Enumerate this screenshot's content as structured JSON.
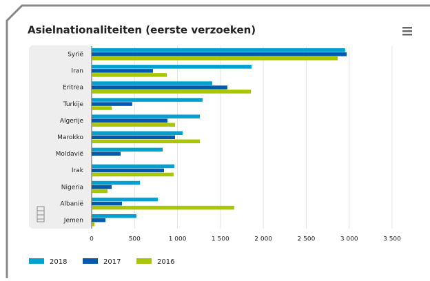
{
  "chart_data": {
    "type": "hbar",
    "title": "Asielnationaliteiten (eerste verzoeken)",
    "categories": [
      "Syrië",
      "Iran",
      "Eritrea",
      "Turkije",
      "Algerije",
      "Marokko",
      "Moldavië",
      "Irak",
      "Nigeria",
      "Albanië",
      "Jemen"
    ],
    "series": [
      {
        "name": "2018",
        "color": "#00a0d2",
        "values": [
          2953,
          1862,
          1405,
          1292,
          1260,
          1059,
          827,
          963,
          562,
          770,
          522
        ]
      },
      {
        "name": "2017",
        "color": "#0059ad",
        "values": [
          2970,
          714,
          1581,
          473,
          883,
          971,
          337,
          843,
          233,
          353,
          161
        ]
      },
      {
        "name": "2016",
        "color": "#a9c600",
        "values": [
          2865,
          875,
          1854,
          233,
          971,
          1260,
          2,
          955,
          185,
          1661,
          32
        ]
      }
    ],
    "xlim": [
      0,
      3500
    ],
    "xticks": [
      0,
      500,
      {
        "value": 1000,
        "label": "1 000"
      },
      {
        "value": 1500,
        "label": "1 500"
      },
      {
        "value": 2000,
        "label": "2 000"
      },
      {
        "value": 2500,
        "label": "2 500"
      },
      {
        "value": 3000,
        "label": "3 000"
      },
      {
        "value": 3500,
        "label": "3 500"
      }
    ],
    "grid": true
  }
}
